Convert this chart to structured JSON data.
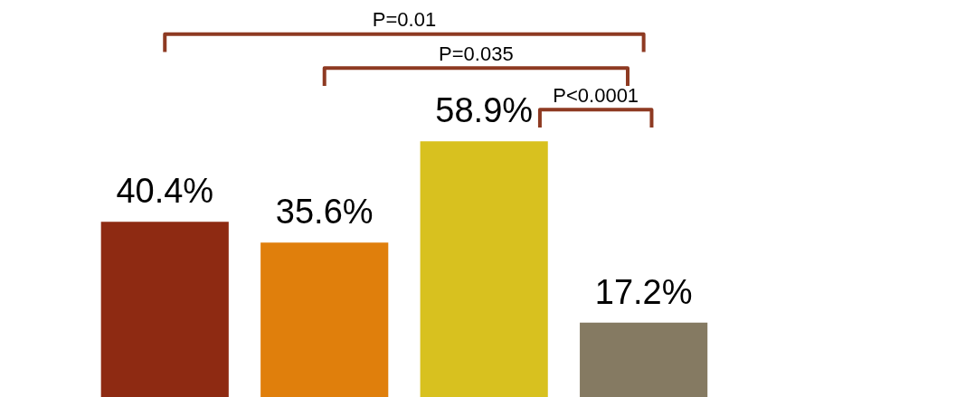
{
  "chart_data": {
    "type": "bar",
    "categories": [
      null,
      null,
      null,
      null
    ],
    "values": [
      40.4,
      35.6,
      58.9,
      17.2
    ],
    "colors": [
      "#8e2a12",
      "#e07f0c",
      "#d8c11f",
      "#857a62"
    ],
    "value_labels": [
      "40.4%",
      "35.6%",
      "58.9%",
      "17.2%"
    ],
    "grid": false,
    "annotations": [
      "P=0.01",
      "P=0.035",
      "P<0.0001"
    ]
  }
}
